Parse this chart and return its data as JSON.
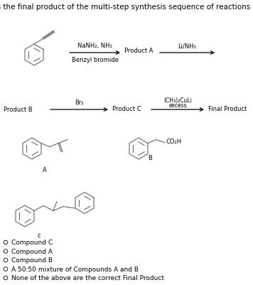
{
  "title": "What is the final product of the multi-step synthesis sequence of reactions shown?",
  "title_fontsize": 7.5,
  "bg_color": "#ffffff",
  "text_color": "#000000",
  "gray": "#666666",
  "arrow1_label_top": "NaNH₂, NH₃",
  "arrow1_label_bot": "Benzyl bromide",
  "arrow1_mid": "Product A",
  "arrow2_label": "Li/NH₃",
  "arrow3_label_top": "Br₂",
  "arrow3_mid": "Product C",
  "arrow4_label_top": "(CH₃)₂CuLi",
  "arrow4_label_bot": "excess",
  "arrow4_end": "Final Product",
  "compound_a_label": "A",
  "compound_b_label": "B",
  "compound_c_label": "c",
  "co2h_label": "CO₂H",
  "product_b_label": "Product B",
  "choices": [
    "Compound C",
    "Compound A",
    "Compound B",
    "A 50:50 mixture of Compounds A and B",
    "None of the above are the correct Final Product"
  ]
}
